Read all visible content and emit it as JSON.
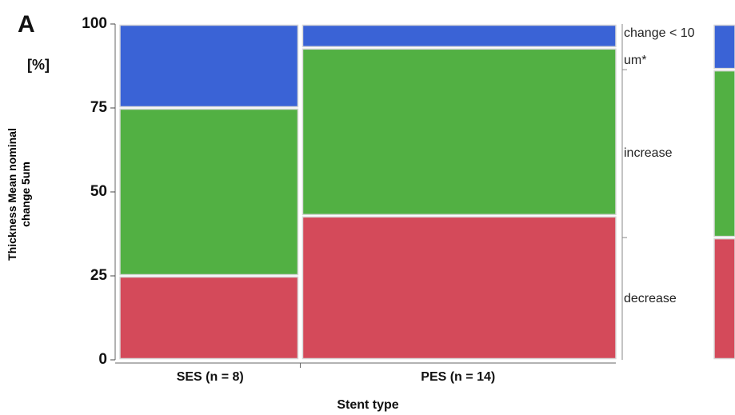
{
  "chart_data": {
    "type": "mosaic",
    "panel_label": "A",
    "y_unit": "[%]",
    "ylabel": "Thickness Mean nominal change 5um",
    "xlabel": "Stent type",
    "categories": [
      "SES (n = 8)",
      "PES (n = 14)"
    ],
    "counts": [
      8,
      14
    ],
    "series": [
      {
        "name": "decrease",
        "color": "#d44a5a",
        "values": [
          25,
          42.9
        ],
        "overall": 36.4
      },
      {
        "name": "increase",
        "color": "#52b043",
        "values": [
          50,
          50
        ],
        "overall": 50
      },
      {
        "name": "change < 10 um*",
        "color": "#3a63d6",
        "values": [
          25,
          7.1
        ],
        "overall": 13.6
      }
    ],
    "ylim": [
      0,
      100
    ],
    "yticks": [
      0,
      25,
      50,
      75,
      100
    ]
  }
}
